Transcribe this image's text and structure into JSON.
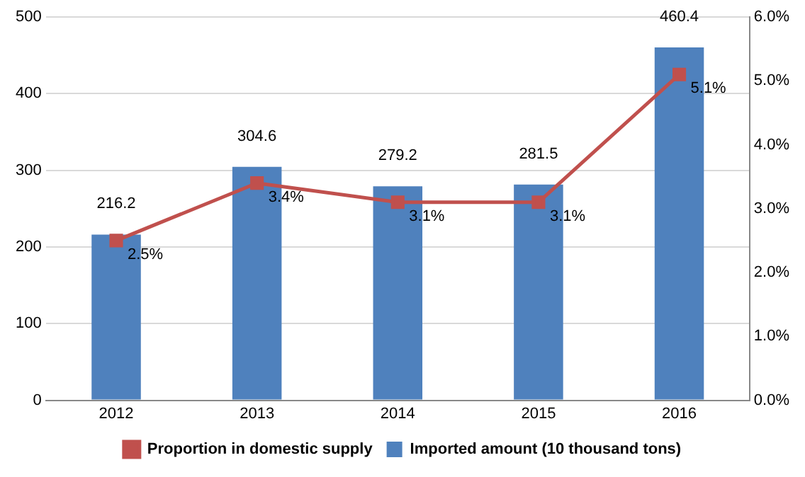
{
  "chart_data": {
    "type": "bar",
    "categories": [
      "2012",
      "2013",
      "2014",
      "2015",
      "2016"
    ],
    "series": [
      {
        "name": "Imported amount (10 thousand tons)",
        "color": "#4f81bd",
        "values": [
          216.2,
          304.6,
          279.2,
          281.5,
          460.4
        ],
        "value_labels": [
          "216.2",
          "304.6",
          "279.2",
          "281.5",
          "460.4"
        ]
      },
      {
        "name": "Proportion in domestic supply",
        "type": "line",
        "axis": "y2",
        "color": "#c0504d",
        "values": [
          2.5,
          3.4,
          3.1,
          3.1,
          5.1
        ],
        "value_labels": [
          "2.5%",
          "3.4%",
          "3.1%",
          "3.1%",
          "5.1%"
        ],
        "marker": "square"
      }
    ],
    "ylim": [
      0,
      500
    ],
    "yticks": [
      0,
      100,
      200,
      300,
      400,
      500
    ],
    "y2lim": [
      0,
      6
    ],
    "y2ticks": [
      {
        "value": 0,
        "label": "0.0%"
      },
      {
        "value": 1,
        "label": "1.0%"
      },
      {
        "value": 2,
        "label": "2.0%"
      },
      {
        "value": 3,
        "label": "3.0%"
      },
      {
        "value": 4,
        "label": "4.0%"
      },
      {
        "value": 5,
        "label": "5.0%"
      },
      {
        "value": 6,
        "label": "6.0%"
      }
    ],
    "grid": "y",
    "legend": "bottom"
  }
}
